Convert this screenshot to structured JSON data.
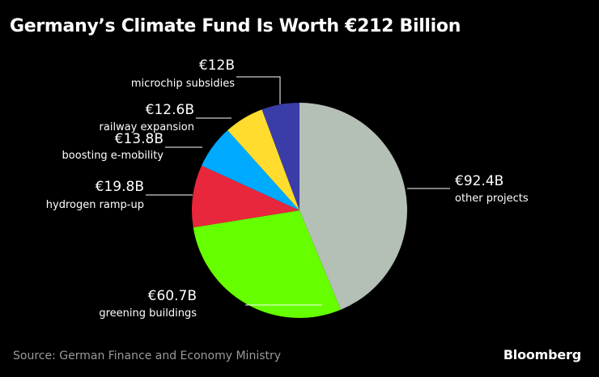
{
  "title": "Germany’s Climate Fund Is Worth €212 Billion",
  "source": "Source: German Finance and Economy Ministry",
  "brand": "Bloomberg",
  "chart_data": {
    "type": "pie",
    "title": "Germany’s Climate Fund Is Worth €212 Billion",
    "unit": "€ billion",
    "start": "12 o'clock, clockwise",
    "slices": [
      {
        "name": "other projects",
        "value": 92.4,
        "label": "€92.4B",
        "color": "#b4bfb5"
      },
      {
        "name": "greening buildings",
        "value": 60.7,
        "label": "€60.7B",
        "color": "#66ff00"
      },
      {
        "name": "hydrogen ramp-up",
        "value": 19.8,
        "label": "€19.8B",
        "color": "#e8273c"
      },
      {
        "name": "boosting e-mobility",
        "value": 13.8,
        "label": "€13.8B",
        "color": "#00aaff"
      },
      {
        "name": "railway expansion",
        "value": 12.6,
        "label": "€12.6B",
        "color": "#ffdc2e"
      },
      {
        "name": "microchip subsidies",
        "value": 12.0,
        "label": "€12B",
        "color": "#3a3da8"
      }
    ]
  }
}
